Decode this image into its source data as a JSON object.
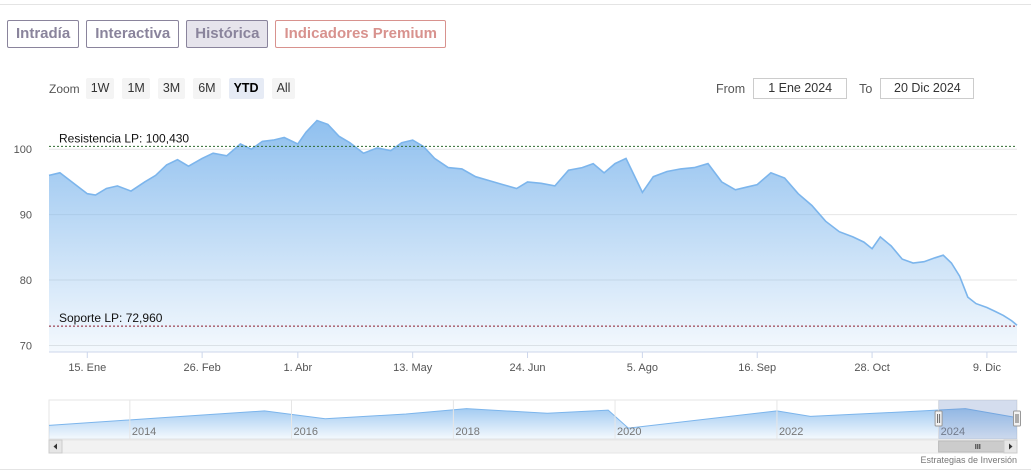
{
  "tabs": [
    {
      "label": "Intradía",
      "active": false,
      "premium": false
    },
    {
      "label": "Interactiva",
      "active": false,
      "premium": false
    },
    {
      "label": "Histórica",
      "active": true,
      "premium": false
    },
    {
      "label": "Indicadores Premium",
      "active": false,
      "premium": true
    }
  ],
  "zoom": {
    "label": "Zoom",
    "buttons": [
      "1W",
      "1M",
      "3M",
      "6M",
      "YTD",
      "All"
    ],
    "active": "YTD"
  },
  "range": {
    "from_label": "From",
    "from_value": "1 Ene 2024",
    "to_label": "To",
    "to_value": "20 Dic 2024"
  },
  "credit": "Estrategias de Inversión",
  "colors": {
    "line": "#7cb5ec",
    "fill_top": "#7cb5ec",
    "resistance": "#2f6b2f",
    "support": "#8b1c2c",
    "accent_tab": "#8a849c",
    "premium_tab": "#d8928e"
  },
  "chart_data": {
    "type": "area",
    "title": "",
    "xlabel": "",
    "ylabel": "",
    "ylim": [
      69,
      106
    ],
    "y_ticks": [
      70,
      80,
      90,
      100
    ],
    "x_range": [
      "2024-01-01",
      "2024-12-20"
    ],
    "x_ticks": [
      {
        "date": "2024-01-15",
        "label": "15. Ene"
      },
      {
        "date": "2024-02-26",
        "label": "26. Feb"
      },
      {
        "date": "2024-04-01",
        "label": "1. Abr"
      },
      {
        "date": "2024-05-13",
        "label": "13. May"
      },
      {
        "date": "2024-06-24",
        "label": "24. Jun"
      },
      {
        "date": "2024-08-05",
        "label": "5. Ago"
      },
      {
        "date": "2024-09-16",
        "label": "16. Sep"
      },
      {
        "date": "2024-10-28",
        "label": "28. Oct"
      },
      {
        "date": "2024-12-09",
        "label": "9. Dic"
      }
    ],
    "series": [
      {
        "x": [
          "2024-01-01",
          "2024-01-05",
          "2024-01-10",
          "2024-01-15",
          "2024-01-18",
          "2024-01-22",
          "2024-01-26",
          "2024-01-31",
          "2024-02-05",
          "2024-02-09",
          "2024-02-13",
          "2024-02-17",
          "2024-02-21",
          "2024-02-26",
          "2024-03-01",
          "2024-03-06",
          "2024-03-11",
          "2024-03-15",
          "2024-03-19",
          "2024-03-23",
          "2024-03-27",
          "2024-04-01",
          "2024-04-04",
          "2024-04-08",
          "2024-04-12",
          "2024-04-16",
          "2024-04-20",
          "2024-04-25",
          "2024-04-30",
          "2024-05-05",
          "2024-05-09",
          "2024-05-13",
          "2024-05-17",
          "2024-05-21",
          "2024-05-26",
          "2024-05-31",
          "2024-06-05",
          "2024-06-10",
          "2024-06-15",
          "2024-06-20",
          "2024-06-24",
          "2024-06-29",
          "2024-07-04",
          "2024-07-09",
          "2024-07-14",
          "2024-07-18",
          "2024-07-22",
          "2024-07-26",
          "2024-07-30",
          "2024-08-05",
          "2024-08-09",
          "2024-08-14",
          "2024-08-19",
          "2024-08-24",
          "2024-08-29",
          "2024-09-03",
          "2024-09-08",
          "2024-09-12",
          "2024-09-16",
          "2024-09-21",
          "2024-09-26",
          "2024-10-01",
          "2024-10-06",
          "2024-10-11",
          "2024-10-16",
          "2024-10-21",
          "2024-10-25",
          "2024-10-28",
          "2024-10-31",
          "2024-11-04",
          "2024-11-08",
          "2024-11-12",
          "2024-11-16",
          "2024-11-20",
          "2024-11-23",
          "2024-11-26",
          "2024-11-29",
          "2024-12-02",
          "2024-12-05",
          "2024-12-09",
          "2024-12-12",
          "2024-12-15",
          "2024-12-18",
          "2024-12-20"
        ],
        "y": [
          96.0,
          96.4,
          94.8,
          93.2,
          93.0,
          94.0,
          94.4,
          93.6,
          95.0,
          96.0,
          97.6,
          98.4,
          97.4,
          98.6,
          99.4,
          99.0,
          100.8,
          100.0,
          101.2,
          101.4,
          101.8,
          100.8,
          102.6,
          104.4,
          103.8,
          102.0,
          101.0,
          99.4,
          100.2,
          99.8,
          101.0,
          101.4,
          100.4,
          98.6,
          97.2,
          97.0,
          95.8,
          95.2,
          94.6,
          94.0,
          95.0,
          94.8,
          94.4,
          96.8,
          97.2,
          97.8,
          96.4,
          97.8,
          98.6,
          93.4,
          95.8,
          96.6,
          97.0,
          97.2,
          97.8,
          95.0,
          93.8,
          94.2,
          94.6,
          96.4,
          95.6,
          93.2,
          91.4,
          89.0,
          87.4,
          86.6,
          85.8,
          84.8,
          86.6,
          85.2,
          83.2,
          82.6,
          82.8,
          83.4,
          83.8,
          82.6,
          80.6,
          77.4,
          76.4,
          75.8,
          75.2,
          74.6,
          73.8,
          73.1
        ]
      }
    ],
    "reference_lines": [
      {
        "label": "Resistencia LP: 100,430",
        "value": 100.43,
        "style": "dotted"
      },
      {
        "label": "Soporte LP: 72,960",
        "value": 72.96,
        "style": "dotted"
      }
    ],
    "navigator": {
      "x_ticks": [
        "2014",
        "2016",
        "2018",
        "2020",
        "2022",
        "2024"
      ],
      "x_range": [
        "2013-01-01",
        "2024-12-20"
      ],
      "selected_range": [
        "2024-01-01",
        "2024-12-20"
      ],
      "trend": [
        {
          "date": "2013-01-01",
          "value": 0.35
        },
        {
          "date": "2014-06-01",
          "value": 0.55
        },
        {
          "date": "2015-09-01",
          "value": 0.72
        },
        {
          "date": "2016-06-01",
          "value": 0.52
        },
        {
          "date": "2017-06-01",
          "value": 0.64
        },
        {
          "date": "2018-03-01",
          "value": 0.78
        },
        {
          "date": "2019-03-01",
          "value": 0.66
        },
        {
          "date": "2019-12-01",
          "value": 0.74
        },
        {
          "date": "2020-03-01",
          "value": 0.28
        },
        {
          "date": "2021-03-01",
          "value": 0.52
        },
        {
          "date": "2022-01-01",
          "value": 0.72
        },
        {
          "date": "2022-06-01",
          "value": 0.58
        },
        {
          "date": "2023-06-01",
          "value": 0.68
        },
        {
          "date": "2024-05-01",
          "value": 0.78
        },
        {
          "date": "2024-12-20",
          "value": 0.55
        }
      ]
    },
    "grid": true,
    "legend": "none"
  }
}
